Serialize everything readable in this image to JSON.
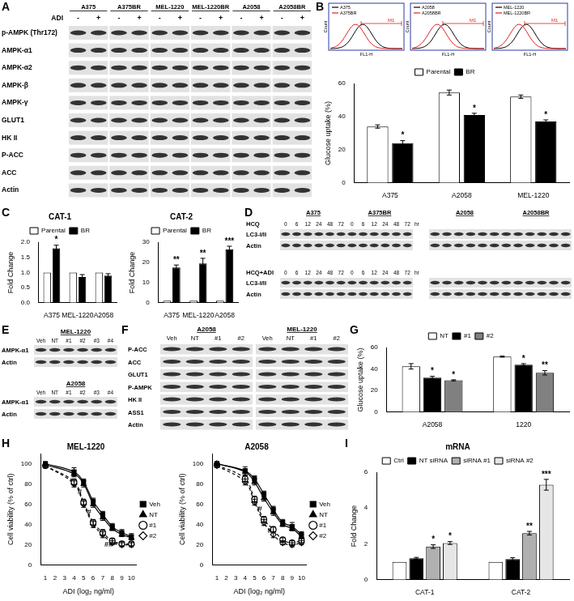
{
  "panel_letters": [
    "A",
    "B",
    "C",
    "D",
    "E",
    "F",
    "G",
    "H",
    "I"
  ],
  "blot_A": {
    "groups": [
      "A375",
      "A375BR",
      "MEL-1220",
      "MEL-1220BR",
      "A2058",
      "A2058BR"
    ],
    "lane_label": "ADI",
    "lanes": [
      "-",
      "+"
    ],
    "rows": [
      "p-AMPK (Thr172)",
      "AMPK-α1",
      "AMPK-α2",
      "AMPK-β",
      "AMPK-γ",
      "GLUT1",
      "HK II",
      "P-ACC",
      "ACC",
      "Actin"
    ]
  },
  "flow_B": {
    "ylabel": "Count",
    "xlabel": "FL1-H",
    "gate": "M1",
    "colors": [
      "#000000",
      "#e02020"
    ],
    "plots": [
      {
        "legend": [
          "A375",
          "A375BR"
        ]
      },
      {
        "legend": [
          "A2058",
          "A2058BR"
        ]
      },
      {
        "legend": [
          "MEL-1220",
          "MEL-1220BR"
        ]
      }
    ]
  },
  "blot_D": {
    "groups": [
      [
        "A375",
        "A375BR"
      ],
      [
        "A2058",
        "A2058BR"
      ]
    ],
    "lanes": [
      "0",
      "6",
      "12",
      "24",
      "48",
      "72"
    ],
    "unit": "hr",
    "sections": [
      "HCQ",
      "HCQ+ADI"
    ],
    "rows": [
      "LC3-I/II",
      "Actin"
    ]
  },
  "blot_E": {
    "cell_lines": [
      "MEL-1220",
      "A2058"
    ],
    "lanes": [
      "Veh",
      "NT",
      "#1",
      "#2",
      "#3",
      "#4"
    ],
    "rows": [
      "AMPK-α1",
      "Actin"
    ]
  },
  "blot_F": {
    "groups": [
      "A2058",
      "MEL-1220"
    ],
    "lanes": [
      "Veh",
      "NT",
      "#1",
      "#2"
    ],
    "rows": [
      "P-ACC",
      "ACC",
      "GLUT1",
      "P-AMPK",
      "HK II",
      "ASS1",
      "Actin"
    ]
  },
  "chart_data": [
    {
      "type": "bar",
      "ylabel": "Glucose uptake (%)",
      "categories": [
        "A375",
        "A2058",
        "MEL-1220"
      ],
      "series": [
        {
          "name": "Parental",
          "color": "#ffffff",
          "values": [
            34,
            54.5,
            52
          ],
          "errors": [
            1,
            1.5,
            1
          ]
        },
        {
          "name": "BR",
          "color": "#000000",
          "values": [
            24,
            41,
            37
          ],
          "errors": [
            1.5,
            1,
            1
          ],
          "significance": [
            "*",
            "*",
            "*"
          ]
        }
      ],
      "ylim": [
        0,
        60
      ],
      "yticks": [
        0,
        20,
        40,
        60
      ],
      "grid": false,
      "legend": "top"
    },
    {
      "type": "bar",
      "title": "CAT-1",
      "ylabel": "Fold Change",
      "categories": [
        "A375",
        "MEL-1220",
        "A2058"
      ],
      "series": [
        {
          "name": "Parental",
          "color": "#ffffff",
          "values": [
            1,
            1,
            1
          ],
          "errors": [
            0,
            0,
            0
          ]
        },
        {
          "name": "BR",
          "color": "#000000",
          "values": [
            1.8,
            0.85,
            0.9
          ],
          "errors": [
            0.1,
            0.08,
            0.06
          ],
          "significance": [
            "*",
            null,
            null
          ]
        }
      ],
      "ylim": [
        0,
        2
      ],
      "yticks": [
        {
          "value": 0,
          "label": "0.0"
        },
        {
          "value": 0.5,
          "label": "0.5"
        },
        {
          "value": 1,
          "label": "1.0"
        },
        {
          "value": 1.5,
          "label": "1.5"
        },
        {
          "value": 2,
          "label": "2.0"
        }
      ],
      "grid": false,
      "legend": "top"
    },
    {
      "type": "bar",
      "title": "CAT-2",
      "ylabel": "Fold Change",
      "categories": [
        "A375",
        "MEL-1220",
        "A2058"
      ],
      "series": [
        {
          "name": "Parental",
          "color": "#ffffff",
          "values": [
            1,
            1,
            1
          ],
          "errors": [
            0,
            0,
            0
          ]
        },
        {
          "name": "BR",
          "color": "#000000",
          "values": [
            17.5,
            19.5,
            26.5
          ],
          "errors": [
            1.2,
            2.5,
            1.5
          ],
          "significance": [
            "**",
            "**",
            "***"
          ]
        }
      ],
      "ylim": [
        0,
        30
      ],
      "yticks": [
        0,
        10,
        20,
        30
      ],
      "grid": false,
      "legend": "top"
    },
    {
      "type": "bar",
      "ylabel": "Glucose uptake (%)",
      "categories": [
        "A2058",
        "1220"
      ],
      "series": [
        {
          "name": "NT",
          "color": "#ffffff",
          "values": [
            42.5,
            51.5
          ],
          "errors": [
            2.5,
            0.5
          ]
        },
        {
          "name": "#1",
          "color": "#000000",
          "values": [
            32,
            44
          ],
          "errors": [
            1.2,
            1
          ],
          "significance": [
            "*",
            "*"
          ]
        },
        {
          "name": "#2",
          "color": "#808080",
          "values": [
            29.5,
            36.5
          ],
          "errors": [
            0.5,
            2
          ],
          "significance": [
            "*",
            "**"
          ]
        }
      ],
      "ylim": [
        0,
        60
      ],
      "yticks": [
        0,
        20,
        40,
        60
      ],
      "grid": false,
      "legend": "top"
    },
    {
      "type": "line",
      "title": "MEL-1220",
      "xlabel": "ADI (log₂ ng/ml)",
      "ylabel": "Cell viability (% of ctrl)",
      "x": [
        1,
        4,
        5,
        6,
        7,
        8,
        9,
        10
      ],
      "series": [
        {
          "name": "Veh",
          "color": "#000000",
          "marker": "square",
          "line_style": "solid",
          "values": [
            100,
            92,
            82,
            63,
            50,
            38,
            32,
            28
          ],
          "errors": [
            2,
            4,
            3,
            3,
            3,
            3,
            3,
            3
          ]
        },
        {
          "name": "NT",
          "color": "#000000",
          "marker": "triangle",
          "line_style": "solid",
          "values": [
            99,
            90,
            80,
            60,
            47,
            36,
            30,
            27
          ],
          "errors": [
            2,
            3,
            3,
            3,
            3,
            2,
            2,
            2
          ]
        },
        {
          "name": "#1",
          "color": "#000000",
          "marker": "circle_open",
          "line_style": "dashed",
          "values": [
            98,
            82,
            62,
            42,
            32,
            24,
            21,
            21
          ],
          "errors": [
            2,
            3,
            3,
            3,
            3,
            2,
            2,
            2
          ]
        },
        {
          "name": "#2",
          "color": "#000000",
          "marker": "diamond_open",
          "line_style": "dashed",
          "values": [
            98,
            80,
            60,
            40,
            30,
            22,
            20,
            20
          ],
          "errors": [
            2,
            3,
            3,
            3,
            3,
            2,
            2,
            2
          ]
        }
      ],
      "annotations": [
        {
          "x": 4.6,
          "y": 72,
          "text": "#"
        },
        {
          "x": 5.6,
          "y": 52,
          "text": "#"
        },
        {
          "x": 7.6,
          "y": 20,
          "text": "##"
        }
      ],
      "xlim": [
        0.5,
        10.5
      ],
      "xticks": [
        1,
        2,
        3,
        4,
        5,
        6,
        7,
        8,
        9,
        10
      ],
      "ylim": [
        0,
        110
      ],
      "yticks": [
        0,
        20,
        40,
        60,
        80,
        100
      ],
      "grid": false,
      "legend": "right"
    },
    {
      "type": "line",
      "title": "A2058",
      "xlabel": "ADI (log₂ ng/ml)",
      "ylabel": "Cell viability (% of ctrl)",
      "x": [
        1,
        4,
        5,
        6,
        7,
        8,
        9,
        10
      ],
      "series": [
        {
          "name": "Veh",
          "color": "#000000",
          "marker": "square",
          "line_style": "solid",
          "values": [
            100,
            93,
            85,
            70,
            55,
            42,
            38,
            30
          ],
          "errors": [
            2,
            4,
            3,
            3,
            3,
            3,
            4,
            3
          ]
        },
        {
          "name": "NT",
          "color": "#000000",
          "marker": "triangle",
          "line_style": "solid",
          "values": [
            100,
            92,
            82,
            66,
            52,
            40,
            36,
            28
          ],
          "errors": [
            2,
            3,
            3,
            3,
            3,
            2,
            2,
            2
          ]
        },
        {
          "name": "#1",
          "color": "#000000",
          "marker": "circle_open",
          "line_style": "dashed",
          "values": [
            99,
            85,
            65,
            45,
            35,
            25,
            22,
            24
          ],
          "errors": [
            2,
            3,
            3,
            3,
            3,
            2,
            2,
            2
          ]
        },
        {
          "name": "#2",
          "color": "#000000",
          "marker": "diamond_open",
          "line_style": "dashed",
          "values": [
            98,
            82,
            62,
            42,
            30,
            22,
            20,
            22
          ],
          "errors": [
            2,
            3,
            3,
            3,
            3,
            2,
            2,
            2
          ]
        }
      ],
      "annotations": [
        {
          "x": 5.6,
          "y": 55,
          "text": "#"
        },
        {
          "x": 6.6,
          "y": 34,
          "text": "#"
        }
      ],
      "xlim": [
        0.5,
        10.5
      ],
      "xticks": [
        1,
        2,
        3,
        4,
        5,
        6,
        7,
        8,
        9,
        10
      ],
      "ylim": [
        0,
        110
      ],
      "yticks": [
        0,
        20,
        40,
        60,
        80,
        100
      ],
      "grid": false,
      "legend": "right"
    },
    {
      "type": "bar",
      "title": "mRNA",
      "ylabel": "Fold Change",
      "categories": [
        "CAT-1",
        "CAT-2"
      ],
      "series": [
        {
          "name": "Ctrl",
          "color": "#ffffff",
          "values": [
            1,
            1
          ],
          "errors": [
            0,
            0
          ]
        },
        {
          "name": "NT siRNA",
          "color": "#000000",
          "values": [
            1.2,
            1.15
          ],
          "errors": [
            0.05,
            0.08
          ]
        },
        {
          "name": "siRNA #1",
          "color": "#b0b0b0",
          "values": [
            1.85,
            2.6
          ],
          "errors": [
            0.1,
            0.1
          ],
          "significance": [
            "*",
            "**"
          ]
        },
        {
          "name": "siRNA #2",
          "color": "#e6e6e6",
          "values": [
            2.05,
            5.3
          ],
          "errors": [
            0.08,
            0.3
          ],
          "significance": [
            "*",
            "***"
          ]
        }
      ],
      "ylim": [
        0,
        6
      ],
      "yticks": [
        0,
        2,
        4,
        6
      ],
      "grid": false,
      "legend": "top"
    }
  ]
}
